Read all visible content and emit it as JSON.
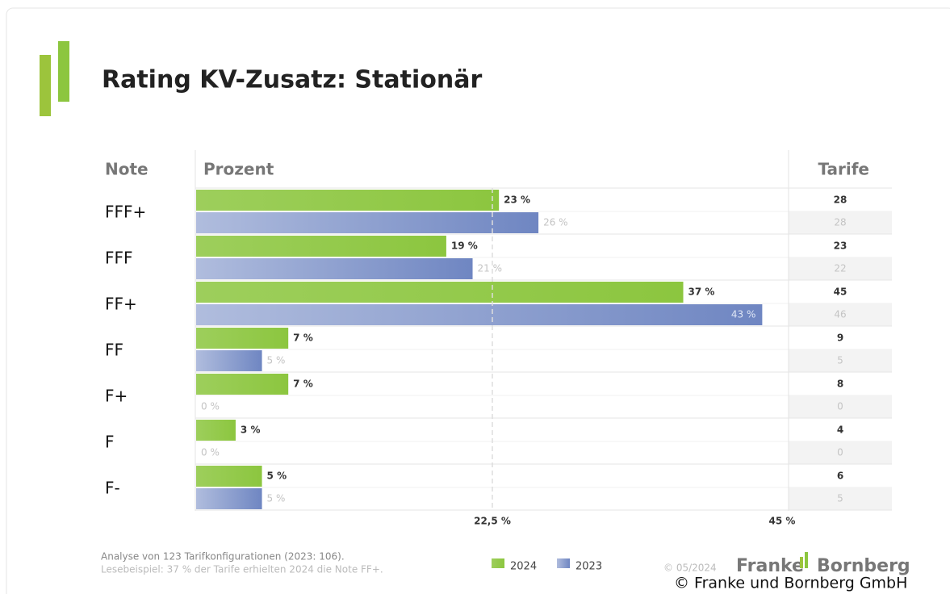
{
  "chart_data": {
    "type": "bar",
    "orientation": "horizontal",
    "title": "Rating KV-Zusatz: Stationär",
    "category_header": "Note",
    "value_header": "Prozent",
    "count_header": "Tarife",
    "categories": [
      "FFF+",
      "FFF",
      "FF+",
      "FF",
      "F+",
      "F",
      "F-"
    ],
    "series": [
      {
        "name": "2024",
        "color": "#8cc63f",
        "values": [
          23,
          19,
          37,
          7,
          7,
          3,
          5
        ],
        "value_labels": [
          "23 %",
          "19 %",
          "37 %",
          "7 %",
          "7 %",
          "3 %",
          "5 %"
        ],
        "tarife": [
          28,
          23,
          45,
          9,
          8,
          4,
          6
        ]
      },
      {
        "name": "2023",
        "color": "#6f86c2",
        "values": [
          26,
          21,
          43,
          5,
          0,
          0,
          5
        ],
        "value_labels": [
          "26 %",
          "21 %",
          "43 %",
          "5 %",
          "0 %",
          "0 %",
          "5 %"
        ],
        "tarife": [
          28,
          22,
          46,
          5,
          0,
          0,
          5
        ]
      }
    ],
    "xlim": [
      0,
      45
    ],
    "xticks": [
      {
        "value": 22.5,
        "label": "22,5 %"
      },
      {
        "value": 45,
        "label": "45 %"
      }
    ],
    "notes": [
      "Analyse von 123 Tarifkonfigurationen (2023: 106).",
      "Lesebeispiel: 37 % der Tarife erhielten 2024 die Note FF+."
    ],
    "date": "© 05/2024",
    "logo": [
      "Franke",
      "Bornberg"
    ],
    "copyright": "© Franke und Bornberg GmbH"
  }
}
